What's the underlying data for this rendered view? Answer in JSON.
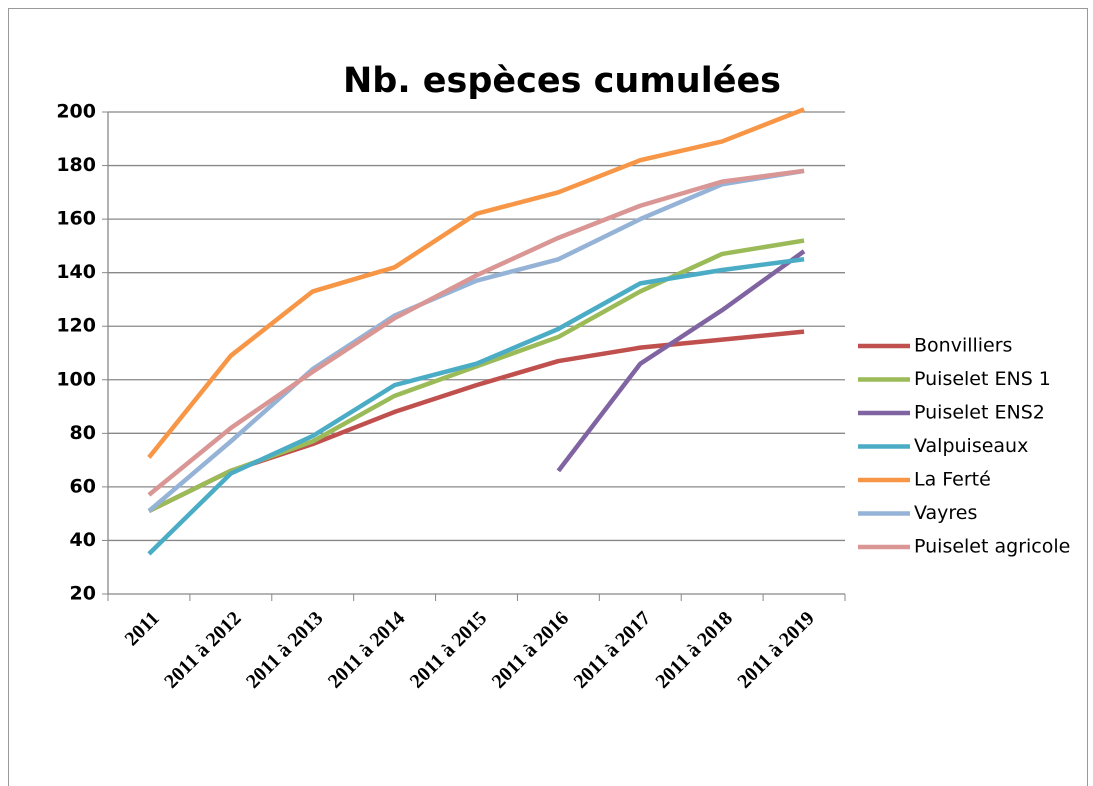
{
  "chart_data": {
    "type": "line",
    "title": "Nb. espèces cumulées",
    "categories": [
      "2011",
      "2011 à 2012",
      "2011 à 2013",
      "2011 à 2014",
      "2011 à 2015",
      "2011 à 2016",
      "2011 à 2017",
      "2011 à 2018",
      "2011 à 2019"
    ],
    "series": [
      {
        "name": "Bonvilliers",
        "color": "#c0504d",
        "values": [
          51,
          66,
          76,
          88,
          98,
          107,
          112,
          115,
          118
        ]
      },
      {
        "name": "Puiselet ENS 1",
        "color": "#9bbb59",
        "values": [
          51,
          66,
          77,
          94,
          105,
          116,
          133,
          147,
          152
        ]
      },
      {
        "name": "Puiselet ENS2",
        "color": "#8064a2",
        "values": [
          null,
          null,
          null,
          null,
          null,
          66,
          106,
          126,
          148
        ]
      },
      {
        "name": "Valpuiseaux",
        "color": "#4bacc6",
        "values": [
          35,
          65,
          79,
          98,
          106,
          119,
          136,
          141,
          145
        ]
      },
      {
        "name": "La Ferté",
        "color": "#f79646",
        "values": [
          71,
          109,
          133,
          142,
          162,
          170,
          182,
          189,
          201
        ]
      },
      {
        "name": "Vayres",
        "color": "#95b3d7",
        "values": [
          51,
          77,
          104,
          124,
          137,
          145,
          160,
          173,
          178
        ]
      },
      {
        "name": "Puiselet agricole",
        "color": "#d99694",
        "values": [
          57,
          82,
          103,
          123,
          139,
          153,
          165,
          174,
          178
        ]
      }
    ],
    "ylim": [
      20,
      200
    ],
    "yticks": [
      20,
      40,
      60,
      80,
      100,
      120,
      140,
      160,
      180,
      200
    ],
    "grid": true,
    "legend": "right"
  }
}
